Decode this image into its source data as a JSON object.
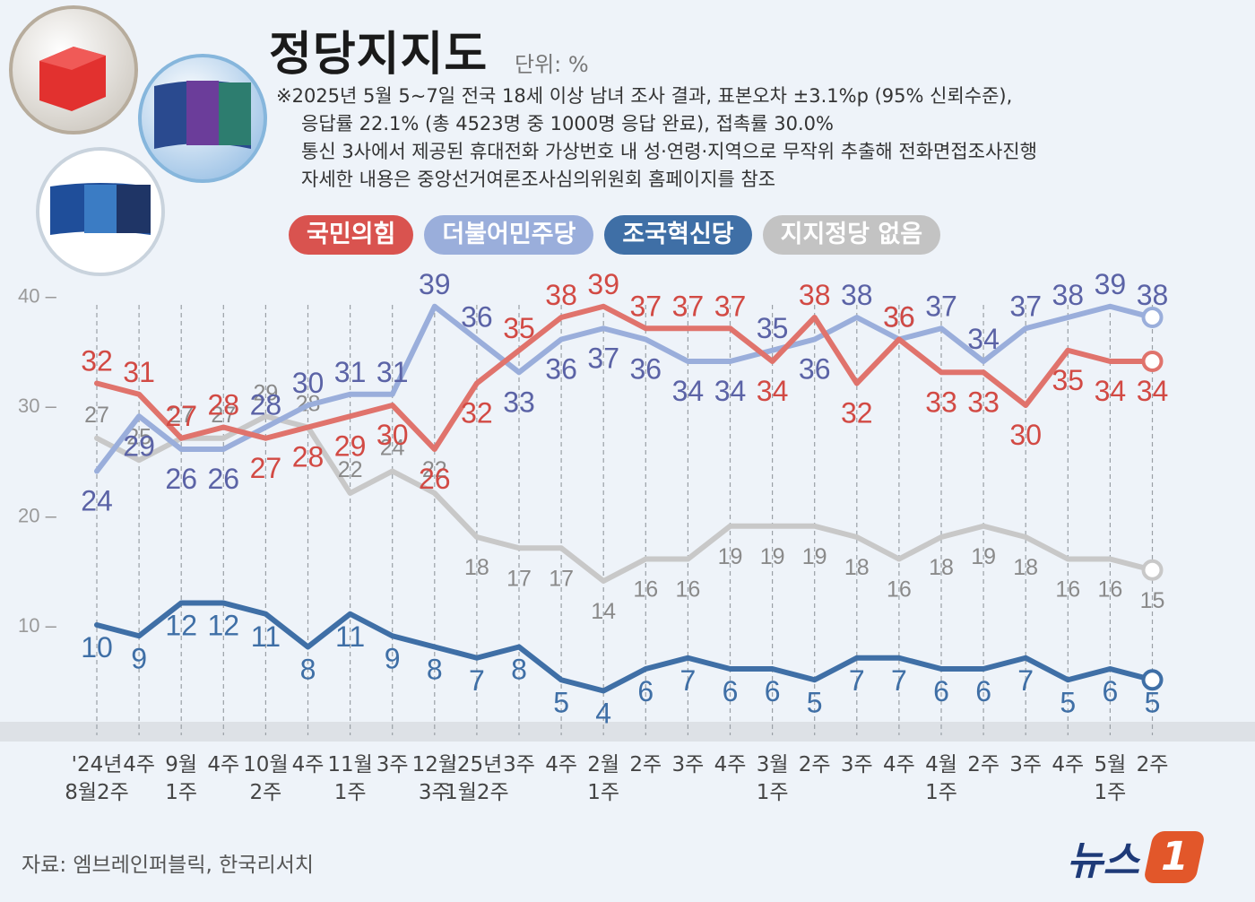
{
  "header": {
    "title": "정당지지도",
    "unit": "단위: %",
    "notes": [
      "※2025년 5월 5~7일 전국 18세 이상 남녀 조사 결과, 표본오차 ±3.1%p (95% 신뢰수준),",
      "응답률 22.1% (총 4523명 중 1000명 응답 완료), 접촉률 30.0%",
      "통신 3사에서 제공된 휴대전화 가상번호 내 성·연령·지역으로 무작위 추출해 전화면접조사진행",
      "자세한 내용은 중앙선거여론조사심의위원회 홈페이지를 참조"
    ]
  },
  "legend": [
    {
      "label": "국민의힘",
      "color": "#d9534f"
    },
    {
      "label": "더불어민주당",
      "color": "#9aaedb"
    },
    {
      "label": "조국혁신당",
      "color": "#3f6fa6"
    },
    {
      "label": "지지정당 없음",
      "color": "#c3c3c3"
    }
  ],
  "footer": {
    "source": "자료: 엠브레인퍼블릭, 한국리서치",
    "brand": "뉴스",
    "brand_mark": "1"
  },
  "chart_data": {
    "type": "line",
    "y_ticks": [
      "40",
      "30",
      "20",
      "10"
    ],
    "ylim": [
      0,
      42
    ],
    "x_labels": [
      [
        "'24년",
        "8월2주"
      ],
      [
        "4주"
      ],
      [
        "9월",
        "1주"
      ],
      [
        "4주"
      ],
      [
        "10월",
        "2주"
      ],
      [
        "4주"
      ],
      [
        "11월",
        "1주"
      ],
      [
        "3주"
      ],
      [
        "12월",
        "3주"
      ],
      [
        "'25년",
        "1월2주"
      ],
      [
        "3주"
      ],
      [
        "4주"
      ],
      [
        "2월",
        "1주"
      ],
      [
        "2주"
      ],
      [
        "3주"
      ],
      [
        "4주"
      ],
      [
        "3월",
        "1주"
      ],
      [
        "2주"
      ],
      [
        "3주"
      ],
      [
        "4주"
      ],
      [
        "4월",
        "1주"
      ],
      [
        "2주"
      ],
      [
        "3주"
      ],
      [
        "4주"
      ],
      [
        "5월",
        "1주"
      ],
      [
        "2주"
      ]
    ],
    "series": [
      {
        "name": "지지정당 없음",
        "color": "#c8c8c8",
        "label_color": "#8a8a8a",
        "values": [
          27,
          25,
          27,
          27,
          29,
          28,
          22,
          24,
          22,
          18,
          17,
          17,
          14,
          16,
          16,
          19,
          19,
          19,
          18,
          16,
          18,
          19,
          18,
          16,
          16,
          15
        ]
      },
      {
        "name": "조국혁신당",
        "color": "#3f6fa6",
        "label_color": "#3f6fa6",
        "values": [
          10,
          9,
          12,
          12,
          11,
          8,
          11,
          9,
          8,
          7,
          8,
          5,
          4,
          6,
          7,
          6,
          6,
          5,
          7,
          7,
          6,
          6,
          7,
          5,
          6,
          5
        ]
      },
      {
        "name": "더불어민주당",
        "color": "#9aaedb",
        "label_color": "#5b63a6",
        "values": [
          24,
          29,
          26,
          26,
          28,
          30,
          31,
          31,
          39,
          36,
          33,
          36,
          37,
          36,
          34,
          34,
          35,
          36,
          38,
          36,
          37,
          34,
          37,
          38,
          39,
          38
        ]
      },
      {
        "name": "국민의힘",
        "color": "#e0736c",
        "label_color": "#d24a44",
        "values": [
          32,
          31,
          27,
          28,
          27,
          28,
          29,
          30,
          26,
          32,
          35,
          38,
          39,
          37,
          37,
          37,
          34,
          38,
          32,
          36,
          33,
          33,
          30,
          35,
          34,
          34
        ]
      }
    ]
  }
}
